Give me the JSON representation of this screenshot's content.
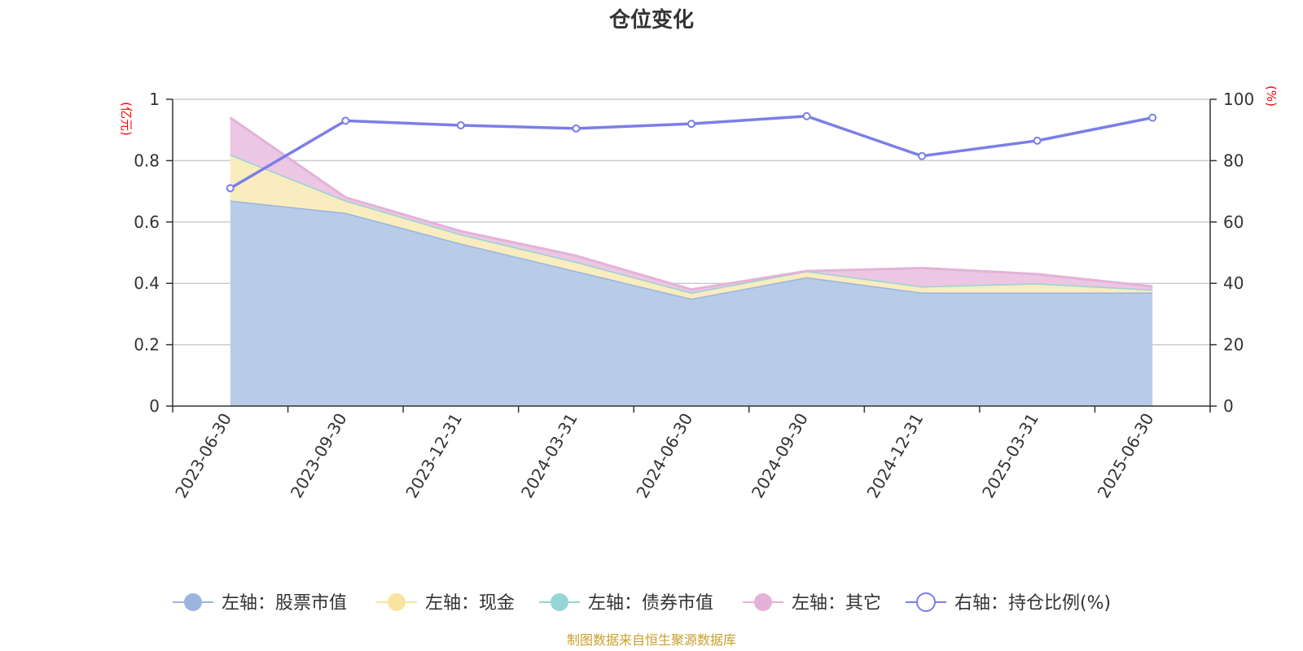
{
  "chart_data": {
    "type": "area",
    "title": "仓位变化",
    "categories": [
      "2023-06-30",
      "2023-09-30",
      "2023-12-31",
      "2024-03-31",
      "2024-06-30",
      "2024-09-30",
      "2024-12-31",
      "2025-03-31",
      "2025-06-30"
    ],
    "left_axis": {
      "unit": "(亿元)",
      "ylim": [
        0,
        1
      ],
      "ticks": [
        "0",
        "0.2",
        "0.4",
        "0.6",
        "0.8",
        "1"
      ],
      "tick_values": [
        0,
        0.2,
        0.4,
        0.6,
        0.8,
        1
      ]
    },
    "right_axis": {
      "unit": "(%)",
      "ylim": [
        0,
        100
      ],
      "ticks": [
        "0",
        "20",
        "40",
        "60",
        "80",
        "100"
      ],
      "tick_values": [
        0,
        20,
        40,
        60,
        80,
        100
      ]
    },
    "series": [
      {
        "name": "左轴：股票市值",
        "axis": "left",
        "kind": "stacked-area",
        "color": "#9bb5df",
        "fill": "#b8cbe9",
        "values": [
          0.67,
          0.63,
          0.53,
          0.44,
          0.35,
          0.42,
          0.37,
          0.37,
          0.37
        ]
      },
      {
        "name": "左轴：现金",
        "axis": "left",
        "kind": "stacked-area",
        "color": "#f8e4a0",
        "fill": "#f9ecbe",
        "values": [
          0.15,
          0.04,
          0.03,
          0.03,
          0.02,
          0.02,
          0.02,
          0.03,
          0.01
        ]
      },
      {
        "name": "左轴：债券市值",
        "axis": "left",
        "kind": "stacked-area",
        "color": "#96d4d6",
        "fill": "#c6e8ea",
        "values": [
          0,
          0,
          0,
          0,
          0,
          0,
          0,
          0,
          0
        ]
      },
      {
        "name": "左轴：其它",
        "axis": "left",
        "kind": "stacked-area",
        "color": "#e4b2d8",
        "fill": "#ebc7e3",
        "values": [
          0.12,
          0.01,
          0.01,
          0.02,
          0.01,
          0.0,
          0.06,
          0.03,
          0.01
        ]
      },
      {
        "name": "右轴：持仓比例(%)",
        "axis": "right",
        "kind": "line",
        "color": "#7b7ee8",
        "values": [
          71,
          93,
          91.5,
          90.5,
          92,
          94.5,
          81.5,
          86.5,
          94
        ]
      }
    ],
    "grid": true,
    "legend_position": "bottom",
    "source_note": "制图数据来自恒生聚源数据库"
  }
}
